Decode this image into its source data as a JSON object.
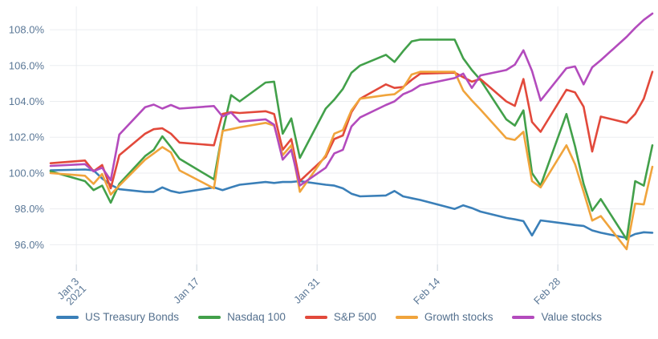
{
  "chart_data": {
    "type": "line",
    "title": "",
    "xlabel": "",
    "ylabel": "",
    "grid": true,
    "legend_position": "bottom",
    "ylim": [
      94.9,
      109.3
    ],
    "y_ticks": {
      "values": [
        96,
        98,
        100,
        102,
        104,
        106,
        108
      ],
      "labels": [
        "96.0%",
        "98.0%",
        "100.0%",
        "102.0%",
        "104.0%",
        "106.0%",
        "108.0%"
      ]
    },
    "x_ticks": [
      {
        "date": "2021-01-03",
        "lines": [
          "Jan 3",
          "2021"
        ]
      },
      {
        "date": "2021-01-17",
        "lines": [
          "Jan 17"
        ]
      },
      {
        "date": "2021-01-31",
        "lines": [
          "Jan 31"
        ]
      },
      {
        "date": "2021-02-14",
        "lines": [
          "Feb 14"
        ]
      },
      {
        "date": "2021-02-28",
        "lines": [
          "Feb 28"
        ]
      }
    ],
    "x": [
      "2020-12-31",
      "2021-01-04",
      "2021-01-05",
      "2021-01-06",
      "2021-01-07",
      "2021-01-08",
      "2021-01-11",
      "2021-01-12",
      "2021-01-13",
      "2021-01-14",
      "2021-01-15",
      "2021-01-19",
      "2021-01-20",
      "2021-01-21",
      "2021-01-22",
      "2021-01-25",
      "2021-01-26",
      "2021-01-27",
      "2021-01-28",
      "2021-01-29",
      "2021-02-01",
      "2021-02-02",
      "2021-02-03",
      "2021-02-04",
      "2021-02-05",
      "2021-02-08",
      "2021-02-09",
      "2021-02-10",
      "2021-02-11",
      "2021-02-12",
      "2021-02-16",
      "2021-02-17",
      "2021-02-18",
      "2021-02-19",
      "2021-02-22",
      "2021-02-23",
      "2021-02-24",
      "2021-02-25",
      "2021-02-26",
      "2021-03-01",
      "2021-03-02",
      "2021-03-03",
      "2021-03-04",
      "2021-03-05",
      "2021-03-08",
      "2021-03-09",
      "2021-03-10",
      "2021-03-11"
    ],
    "series": [
      {
        "name": "US Treasury Bonds",
        "color": "#3a7fb8",
        "values": [
          100.15,
          100.2,
          100.15,
          99.7,
          99.35,
          99.1,
          98.95,
          98.95,
          99.2,
          99.0,
          98.9,
          99.2,
          99.05,
          99.2,
          99.35,
          99.5,
          99.45,
          99.5,
          99.5,
          99.55,
          99.35,
          99.3,
          99.15,
          98.85,
          98.7,
          98.75,
          99.0,
          98.7,
          98.6,
          98.5,
          98.0,
          98.2,
          98.05,
          97.85,
          97.5,
          97.42,
          97.32,
          96.52,
          97.36,
          97.17,
          97.1,
          97.05,
          96.8,
          96.67,
          96.38,
          96.6,
          96.7,
          96.67
        ]
      },
      {
        "name": "Nasdaq 100",
        "color": "#42a04a",
        "values": [
          100.1,
          99.55,
          99.05,
          99.3,
          98.35,
          99.4,
          100.95,
          101.3,
          102.05,
          101.45,
          100.8,
          99.65,
          102.3,
          104.35,
          104.0,
          105.05,
          105.1,
          102.2,
          103.05,
          100.85,
          103.6,
          104.1,
          104.7,
          105.6,
          106.0,
          106.6,
          106.2,
          106.8,
          107.35,
          107.45,
          107.45,
          106.4,
          105.75,
          105.2,
          103.0,
          102.65,
          103.5,
          100.0,
          99.3,
          103.3,
          101.5,
          99.4,
          97.9,
          98.55,
          96.3,
          99.55,
          99.3,
          101.55
        ]
      },
      {
        "name": "S&P 500",
        "color": "#e2493b",
        "values": [
          100.55,
          100.7,
          100.1,
          100.45,
          99.15,
          101.0,
          102.2,
          102.45,
          102.5,
          102.2,
          101.7,
          101.55,
          103.3,
          103.4,
          103.35,
          103.45,
          103.3,
          101.3,
          101.9,
          99.55,
          100.9,
          101.9,
          102.1,
          103.4,
          104.15,
          104.95,
          104.75,
          104.8,
          105.2,
          105.55,
          105.6,
          105.35,
          105.1,
          105.25,
          104.0,
          103.75,
          105.25,
          102.85,
          102.3,
          104.65,
          104.5,
          103.7,
          101.2,
          103.15,
          102.8,
          103.3,
          104.15,
          105.65
        ]
      },
      {
        "name": "Growth stocks",
        "color": "#f0a43c",
        "values": [
          100.0,
          99.85,
          99.4,
          99.95,
          98.8,
          99.3,
          100.75,
          101.1,
          101.45,
          101.15,
          100.15,
          99.15,
          102.35,
          102.45,
          102.55,
          102.8,
          102.65,
          101.0,
          101.55,
          98.95,
          101.0,
          102.2,
          102.4,
          103.5,
          104.15,
          104.35,
          104.4,
          104.75,
          105.5,
          105.65,
          105.65,
          104.6,
          104.05,
          103.55,
          101.95,
          101.85,
          102.3,
          99.55,
          99.2,
          101.55,
          100.5,
          98.95,
          97.35,
          97.6,
          95.75,
          98.3,
          98.25,
          100.35
        ]
      },
      {
        "name": "Value stocks",
        "color": "#b34bbd",
        "values": [
          100.4,
          100.5,
          100.1,
          100.3,
          99.6,
          102.15,
          103.68,
          103.82,
          103.6,
          103.8,
          103.6,
          103.74,
          103.16,
          103.38,
          102.87,
          103.0,
          102.7,
          100.75,
          101.3,
          99.3,
          100.3,
          101.1,
          101.3,
          102.6,
          103.1,
          103.8,
          104.0,
          104.4,
          104.6,
          104.9,
          105.3,
          105.55,
          104.75,
          105.45,
          105.75,
          106.05,
          106.85,
          105.7,
          104.05,
          105.85,
          105.95,
          104.95,
          105.9,
          106.3,
          107.6,
          108.1,
          108.55,
          108.9
        ]
      }
    ],
    "style": {
      "grid_color": "#ebedf0",
      "tick_color": "#c9d2da",
      "axis_text_color": "#5b7897",
      "legend_text_color": "#54708e",
      "background": "#ffffff",
      "line_width": 2.6
    }
  }
}
